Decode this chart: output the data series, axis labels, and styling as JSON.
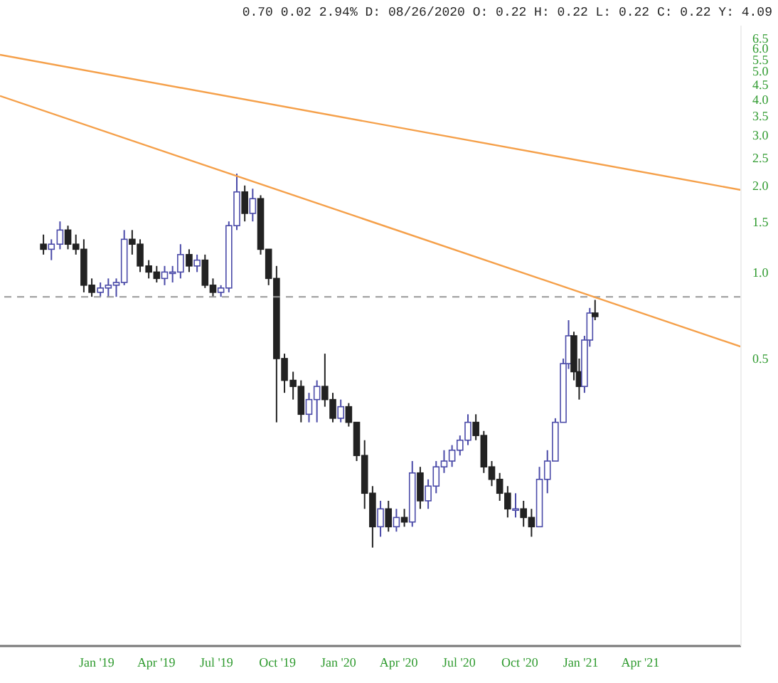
{
  "chart_data": {
    "type": "candlestick",
    "title": "0.70 0.02 2.94% D: 08/26/2020 O: 0.22 H: 0.22 L: 0.22 C: 0.22 Y: 4.09",
    "x": [
      "2018-10-13",
      "2018-10-25",
      "2018-11-07",
      "2018-11-19",
      "2018-12-01",
      "2018-12-13",
      "2018-12-25",
      "2019-01-07",
      "2019-01-19",
      "2019-01-31",
      "2019-02-12",
      "2019-02-24",
      "2019-03-08",
      "2019-03-21",
      "2019-04-02",
      "2019-04-14",
      "2019-04-26",
      "2019-05-08",
      "2019-05-21",
      "2019-06-02",
      "2019-06-14",
      "2019-06-26",
      "2019-07-08",
      "2019-07-20",
      "2019-08-01",
      "2019-08-13",
      "2019-08-25",
      "2019-09-06",
      "2019-09-18",
      "2019-09-30",
      "2019-10-12",
      "2019-10-25",
      "2019-11-06",
      "2019-11-18",
      "2019-11-30",
      "2019-12-12",
      "2019-12-24",
      "2020-01-05",
      "2020-01-17",
      "2020-01-29",
      "2020-02-10",
      "2020-02-22",
      "2020-03-05",
      "2020-03-17",
      "2020-03-29",
      "2020-04-10",
      "2020-04-22",
      "2020-05-04",
      "2020-05-16",
      "2020-05-28",
      "2020-06-09",
      "2020-06-21",
      "2020-07-03",
      "2020-07-15",
      "2020-07-27",
      "2020-08-08",
      "2020-08-20",
      "2020-09-01",
      "2020-09-13",
      "2020-09-25",
      "2020-10-07",
      "2020-10-19",
      "2020-10-31",
      "2020-11-12",
      "2020-11-24",
      "2020-12-06",
      "2020-12-14",
      "2020-12-22",
      "2020-12-30",
      "2021-01-07",
      "2021-01-15",
      "2021-01-23"
    ],
    "ohlc": [
      [
        1.25,
        1.35,
        1.15,
        1.2
      ],
      [
        1.2,
        1.3,
        1.1,
        1.25
      ],
      [
        1.25,
        1.5,
        1.2,
        1.4
      ],
      [
        1.4,
        1.45,
        1.2,
        1.25
      ],
      [
        1.25,
        1.35,
        1.15,
        1.2
      ],
      [
        1.2,
        1.3,
        0.85,
        0.9
      ],
      [
        0.9,
        0.95,
        0.82,
        0.85
      ],
      [
        0.85,
        0.92,
        0.82,
        0.88
      ],
      [
        0.88,
        0.95,
        0.82,
        0.9
      ],
      [
        0.9,
        0.95,
        0.82,
        0.92
      ],
      [
        0.92,
        1.4,
        0.9,
        1.3
      ],
      [
        1.3,
        1.4,
        1.15,
        1.25
      ],
      [
        1.25,
        1.3,
        1.0,
        1.05
      ],
      [
        1.05,
        1.1,
        0.95,
        1.0
      ],
      [
        1.0,
        1.05,
        0.92,
        0.95
      ],
      [
        0.95,
        1.05,
        0.9,
        1.0
      ],
      [
        1.0,
        1.05,
        0.92,
        1.0
      ],
      [
        1.0,
        1.25,
        0.95,
        1.15
      ],
      [
        1.15,
        1.2,
        1.0,
        1.05
      ],
      [
        1.05,
        1.15,
        1.0,
        1.1
      ],
      [
        1.1,
        1.15,
        0.88,
        0.9
      ],
      [
        0.9,
        0.95,
        0.82,
        0.85
      ],
      [
        0.85,
        0.9,
        0.82,
        0.88
      ],
      [
        0.88,
        1.5,
        0.85,
        1.45
      ],
      [
        1.45,
        2.2,
        1.4,
        1.9
      ],
      [
        1.9,
        2.0,
        1.5,
        1.6
      ],
      [
        1.6,
        1.95,
        1.5,
        1.8
      ],
      [
        1.8,
        1.85,
        1.15,
        1.2
      ],
      [
        1.2,
        1.2,
        0.9,
        0.95
      ],
      [
        0.95,
        1.05,
        0.3,
        0.5
      ],
      [
        0.5,
        0.52,
        0.38,
        0.42
      ],
      [
        0.42,
        0.45,
        0.36,
        0.4
      ],
      [
        0.4,
        0.42,
        0.3,
        0.32
      ],
      [
        0.32,
        0.38,
        0.3,
        0.36
      ],
      [
        0.36,
        0.42,
        0.3,
        0.4
      ],
      [
        0.4,
        0.52,
        0.34,
        0.36
      ],
      [
        0.36,
        0.38,
        0.3,
        0.31
      ],
      [
        0.31,
        0.36,
        0.3,
        0.34
      ],
      [
        0.34,
        0.35,
        0.29,
        0.3
      ],
      [
        0.3,
        0.3,
        0.22,
        0.23
      ],
      [
        0.23,
        0.26,
        0.15,
        0.17
      ],
      [
        0.17,
        0.18,
        0.11,
        0.13
      ],
      [
        0.13,
        0.16,
        0.12,
        0.15
      ],
      [
        0.15,
        0.16,
        0.125,
        0.13
      ],
      [
        0.13,
        0.15,
        0.125,
        0.14
      ],
      [
        0.14,
        0.15,
        0.13,
        0.135
      ],
      [
        0.135,
        0.22,
        0.13,
        0.2
      ],
      [
        0.2,
        0.21,
        0.15,
        0.16
      ],
      [
        0.16,
        0.19,
        0.15,
        0.18
      ],
      [
        0.18,
        0.22,
        0.17,
        0.21
      ],
      [
        0.21,
        0.24,
        0.2,
        0.22
      ],
      [
        0.22,
        0.25,
        0.21,
        0.24
      ],
      [
        0.24,
        0.27,
        0.23,
        0.26
      ],
      [
        0.26,
        0.32,
        0.25,
        0.3
      ],
      [
        0.3,
        0.32,
        0.26,
        0.27
      ],
      [
        0.27,
        0.28,
        0.2,
        0.21
      ],
      [
        0.21,
        0.22,
        0.18,
        0.19
      ],
      [
        0.19,
        0.2,
        0.16,
        0.17
      ],
      [
        0.17,
        0.18,
        0.14,
        0.15
      ],
      [
        0.15,
        0.17,
        0.14,
        0.15
      ],
      [
        0.15,
        0.16,
        0.13,
        0.14
      ],
      [
        0.14,
        0.15,
        0.12,
        0.13
      ],
      [
        0.13,
        0.21,
        0.13,
        0.19
      ],
      [
        0.19,
        0.24,
        0.17,
        0.22
      ],
      [
        0.22,
        0.31,
        0.22,
        0.3
      ],
      [
        0.3,
        0.5,
        0.3,
        0.48
      ],
      [
        0.48,
        0.68,
        0.46,
        0.6
      ],
      [
        0.6,
        0.62,
        0.42,
        0.45
      ],
      [
        0.45,
        0.5,
        0.36,
        0.4
      ],
      [
        0.4,
        0.6,
        0.38,
        0.58
      ],
      [
        0.58,
        0.75,
        0.55,
        0.72
      ],
      [
        0.72,
        0.8,
        0.68,
        0.7
      ]
    ],
    "series": [
      {
        "type": "line",
        "color": "#f5a04a",
        "x": [
          "2018-08-08",
          "2021-08-31"
        ],
        "values": [
          5.7,
          1.93
        ]
      },
      {
        "type": "line",
        "color": "#f5a04a",
        "x": [
          "2018-08-08",
          "2021-08-31"
        ],
        "values": [
          4.1,
          0.55
        ]
      }
    ],
    "ref_lines": [
      {
        "axis": "y",
        "value": 0.82,
        "color": "#999999",
        "line_style": "dashed"
      }
    ],
    "log": "y",
    "xlim": [
      "2018-08-08",
      "2021-08-31"
    ],
    "xticks": [
      {
        "value": "2019-01-01",
        "label": "Jan '19"
      },
      {
        "value": "2019-04-01",
        "label": "Apr '19"
      },
      {
        "value": "2019-07-01",
        "label": "Jul '19"
      },
      {
        "value": "2019-10-01",
        "label": "Oct '19"
      },
      {
        "value": "2020-01-01",
        "label": "Jan '20"
      },
      {
        "value": "2020-04-01",
        "label": "Apr '20"
      },
      {
        "value": "2020-07-01",
        "label": "Jul '20"
      },
      {
        "value": "2020-10-01",
        "label": "Oct '20"
      },
      {
        "value": "2021-01-01",
        "label": "Jan '21"
      },
      {
        "value": "2021-04-01",
        "label": "Apr '21"
      }
    ],
    "ylim": [
      0.05,
      7.2
    ],
    "yticks": [
      0.5,
      {
        "value": 1,
        "label": "1.0"
      },
      1.5,
      {
        "value": 2,
        "label": "2.0"
      },
      2.5,
      {
        "value": 3,
        "label": "3.0"
      },
      3.5,
      {
        "value": 4,
        "label": "4.0"
      },
      4.5,
      {
        "value": 5,
        "label": "5.0"
      },
      5.5,
      {
        "value": 6,
        "label": "6.0"
      },
      6.5
    ]
  }
}
